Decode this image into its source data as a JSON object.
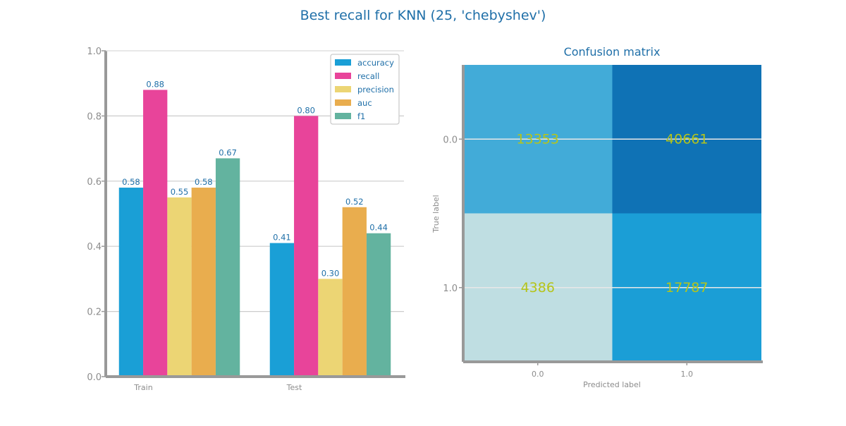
{
  "figure": {
    "title": "Best recall for KNN (25, 'chebyshev')"
  },
  "colors": {
    "title": "#1f6fa8",
    "axis": "#999999",
    "tick_text": "#8c8c8c",
    "grid": "#cccccc",
    "bar_label": "#1f6fa8",
    "legend_text": "#1f6fa8",
    "cm_text": "#b5c41a",
    "series": [
      "#1a9fd6",
      "#e8449a",
      "#ecd574",
      "#e9ad4e",
      "#63b39f"
    ],
    "cm_cells": [
      [
        "#42abd8",
        "#0f72b5"
      ],
      [
        "#bfdee2",
        "#1b9ed6"
      ]
    ]
  },
  "chart_data": [
    {
      "type": "bar",
      "title": "",
      "xlabel": "",
      "ylabel": "",
      "categories": [
        "Train",
        "Test"
      ],
      "series": [
        {
          "name": "accuracy",
          "values": [
            0.58,
            0.41
          ]
        },
        {
          "name": "recall",
          "values": [
            0.88,
            0.8
          ]
        },
        {
          "name": "precision",
          "values": [
            0.55,
            0.3
          ]
        },
        {
          "name": "auc",
          "values": [
            0.58,
            0.52
          ]
        },
        {
          "name": "f1",
          "values": [
            0.67,
            0.44
          ]
        }
      ],
      "value_labels": [
        [
          "0.58",
          "0.41"
        ],
        [
          "0.88",
          "0.80"
        ],
        [
          "0.55",
          "0.30"
        ],
        [
          "0.58",
          "0.52"
        ],
        [
          "0.67",
          "0.44"
        ]
      ],
      "ylim": [
        0,
        1.0
      ],
      "yticks": [
        "0.0",
        "0.2",
        "0.4",
        "0.6",
        "0.8",
        "1.0"
      ],
      "ytick_values": [
        0,
        0.2,
        0.4,
        0.6,
        0.8,
        1.0
      ],
      "grid": true,
      "legend_position": "top-right"
    },
    {
      "type": "heatmap",
      "title": "Confusion matrix",
      "xlabel": "Predicted label",
      "ylabel": "True label",
      "x_categories": [
        "0.0",
        "1.0"
      ],
      "y_categories": [
        "0.0",
        "1.0"
      ],
      "matrix": [
        [
          13353,
          40661
        ],
        [
          4386,
          17787
        ]
      ],
      "grid": true
    }
  ]
}
